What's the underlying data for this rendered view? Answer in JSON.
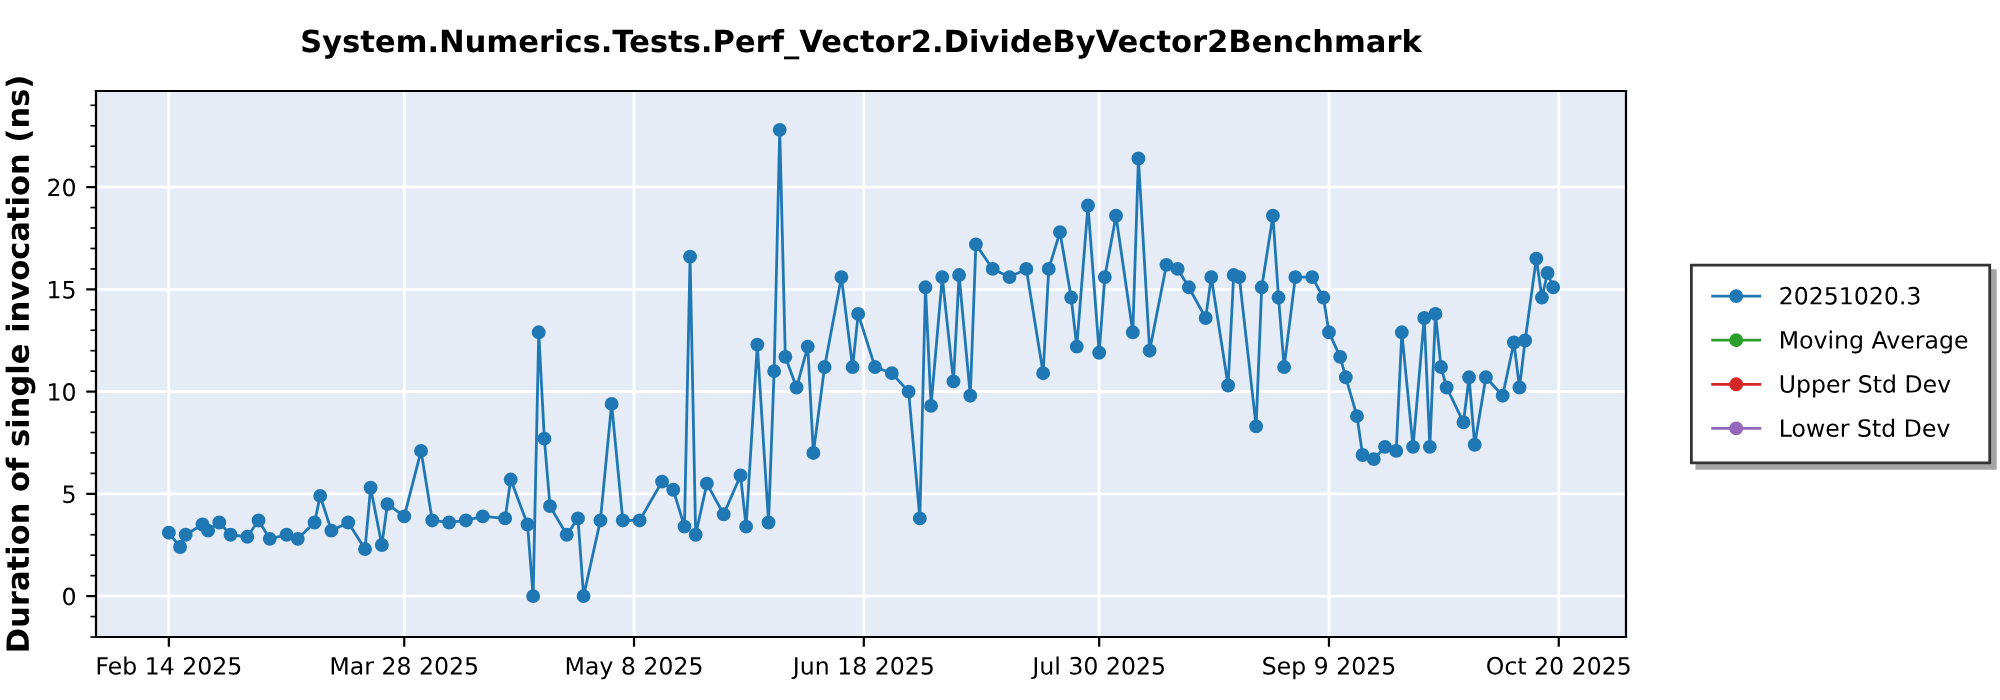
{
  "chart_data": {
    "type": "line",
    "title": "System.Numerics.Tests.Perf_Vector2.DivideByVector2Benchmark",
    "ylabel": "Duration of single invocation (ns)",
    "xlim": [
      "2025-02-01",
      "2025-11-01"
    ],
    "ylim": [
      -2,
      24.7
    ],
    "yticks": [
      0,
      5,
      10,
      15,
      20
    ],
    "xticks": [
      {
        "value": "2025-02-14",
        "label": "Feb 14 2025"
      },
      {
        "value": "2025-03-28",
        "label": "Mar 28 2025"
      },
      {
        "value": "2025-05-08",
        "label": "May 8 2025"
      },
      {
        "value": "2025-06-18",
        "label": "Jun 18 2025"
      },
      {
        "value": "2025-07-30",
        "label": "Jul 30 2025"
      },
      {
        "value": "2025-09-09",
        "label": "Sep 9 2025"
      },
      {
        "value": "2025-10-20",
        "label": "Oct 20 2025"
      }
    ],
    "grid": true,
    "legend": "right",
    "marker": "circle",
    "line_style": "solid",
    "series": [
      {
        "name": "20251020.3",
        "color": "#1f77b4",
        "x": [
          "2025-02-14",
          "2025-02-16",
          "2025-02-17",
          "2025-02-20",
          "2025-02-21",
          "2025-02-23",
          "2025-02-25",
          "2025-02-28",
          "2025-03-02",
          "2025-03-04",
          "2025-03-07",
          "2025-03-09",
          "2025-03-12",
          "2025-03-13",
          "2025-03-15",
          "2025-03-18",
          "2025-03-21",
          "2025-03-22",
          "2025-03-24",
          "2025-03-25",
          "2025-03-28",
          "2025-03-31",
          "2025-04-02",
          "2025-04-05",
          "2025-04-08",
          "2025-04-11",
          "2025-04-15",
          "2025-04-16",
          "2025-04-19",
          "2025-04-20",
          "2025-04-21",
          "2025-04-22",
          "2025-04-23",
          "2025-04-26",
          "2025-04-28",
          "2025-04-29",
          "2025-05-02",
          "2025-05-04",
          "2025-05-06",
          "2025-05-09",
          "2025-05-13",
          "2025-05-15",
          "2025-05-17",
          "2025-05-18",
          "2025-05-19",
          "2025-05-21",
          "2025-05-24",
          "2025-05-27",
          "2025-05-28",
          "2025-05-30",
          "2025-06-01",
          "2025-06-02",
          "2025-06-03",
          "2025-06-04",
          "2025-06-06",
          "2025-06-08",
          "2025-06-09",
          "2025-06-11",
          "2025-06-14",
          "2025-06-16",
          "2025-06-17",
          "2025-06-20",
          "2025-06-23",
          "2025-06-26",
          "2025-06-28",
          "2025-06-29",
          "2025-06-30",
          "2025-07-02",
          "2025-07-04",
          "2025-07-05",
          "2025-07-07",
          "2025-07-08",
          "2025-07-11",
          "2025-07-14",
          "2025-07-17",
          "2025-07-20",
          "2025-07-21",
          "2025-07-23",
          "2025-07-25",
          "2025-07-26",
          "2025-07-28",
          "2025-07-30",
          "2025-07-31",
          "2025-08-02",
          "2025-08-05",
          "2025-08-06",
          "2025-08-08",
          "2025-08-11",
          "2025-08-13",
          "2025-08-15",
          "2025-08-18",
          "2025-08-19",
          "2025-08-22",
          "2025-08-23",
          "2025-08-24",
          "2025-08-27",
          "2025-08-28",
          "2025-08-30",
          "2025-08-31",
          "2025-09-01",
          "2025-09-03",
          "2025-09-06",
          "2025-09-08",
          "2025-09-09",
          "2025-09-11",
          "2025-09-12",
          "2025-09-14",
          "2025-09-15",
          "2025-09-17",
          "2025-09-19",
          "2025-09-21",
          "2025-09-22",
          "2025-09-24",
          "2025-09-26",
          "2025-09-27",
          "2025-09-28",
          "2025-09-29",
          "2025-09-30",
          "2025-10-03",
          "2025-10-04",
          "2025-10-05",
          "2025-10-07",
          "2025-10-10",
          "2025-10-12",
          "2025-10-13",
          "2025-10-14",
          "2025-10-16",
          "2025-10-17",
          "2025-10-18",
          "2025-10-19"
        ],
        "values": [
          3.1,
          2.4,
          3.0,
          3.5,
          3.2,
          3.6,
          3.0,
          2.9,
          3.7,
          2.8,
          3.0,
          2.8,
          3.6,
          4.9,
          3.2,
          3.6,
          2.3,
          5.3,
          2.5,
          4.5,
          3.9,
          7.1,
          3.7,
          3.6,
          3.7,
          3.9,
          3.8,
          5.7,
          3.5,
          0.0,
          12.9,
          7.7,
          4.4,
          3.0,
          3.8,
          0.0,
          3.7,
          9.4,
          3.7,
          3.7,
          5.6,
          5.2,
          3.4,
          16.6,
          3.0,
          5.5,
          4.0,
          5.9,
          3.4,
          12.3,
          3.6,
          11.0,
          22.8,
          11.7,
          10.2,
          12.2,
          7.0,
          11.2,
          15.6,
          11.2,
          13.8,
          11.2,
          10.9,
          10.0,
          3.8,
          15.1,
          9.3,
          15.6,
          10.5,
          15.7,
          9.8,
          17.2,
          16.0,
          15.6,
          16.0,
          10.9,
          16.0,
          17.8,
          14.6,
          12.2,
          19.1,
          11.9,
          15.6,
          18.6,
          12.9,
          21.4,
          12.0,
          16.2,
          16.0,
          15.1,
          13.6,
          15.6,
          10.3,
          15.7,
          15.6,
          8.3,
          15.1,
          18.6,
          14.6,
          11.2,
          15.6,
          15.6,
          14.6,
          12.9,
          11.7,
          10.7,
          8.8,
          6.9,
          6.7,
          7.3,
          7.1,
          12.9,
          7.3,
          13.6,
          7.3,
          13.8,
          11.2,
          10.2,
          8.5,
          10.7,
          7.4,
          10.7,
          9.8,
          12.4,
          10.2,
          12.5,
          16.5,
          14.6,
          15.8,
          15.1
        ]
      },
      {
        "name": "Moving Average",
        "color": "#2ca02c"
      },
      {
        "name": "Upper Std Dev",
        "color": "#d62728"
      },
      {
        "name": "Lower Std Dev",
        "color": "#9467bd"
      }
    ]
  }
}
